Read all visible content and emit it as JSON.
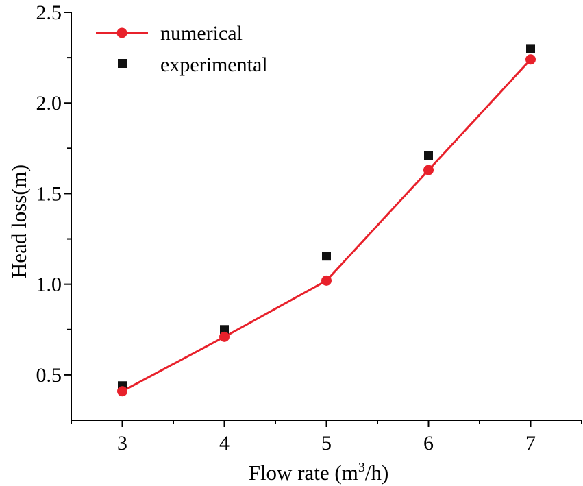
{
  "chart_data": {
    "type": "line",
    "title": "",
    "xlabel": "Flow rate (m",
    "xlabel_superscript": "3",
    "xlabel_suffix": "/h)",
    "ylabel": "Head loss(m)",
    "xlim": [
      2.5,
      7.5
    ],
    "ylim": [
      0.25,
      2.5
    ],
    "x_ticks": [
      3,
      4,
      5,
      6,
      7
    ],
    "y_ticks": [
      0.5,
      1.0,
      1.5,
      2.0,
      2.5
    ],
    "y_tick_labels": [
      "0.5",
      "1.0",
      "1.5",
      "2.0",
      "2.5"
    ],
    "x_tick_labels": [
      "3",
      "4",
      "5",
      "6",
      "7"
    ],
    "grid": false,
    "legend_position": "top-left",
    "series": [
      {
        "name": "numerical",
        "style": "line+circle",
        "color": "#e8212b",
        "x": [
          3,
          4,
          5,
          6,
          7
        ],
        "values": [
          0.41,
          0.71,
          1.02,
          1.63,
          2.24
        ]
      },
      {
        "name": "experimental",
        "style": "square",
        "color": "#111111",
        "x": [
          3,
          4,
          5,
          6,
          7
        ],
        "values": [
          0.44,
          0.75,
          1.155,
          1.71,
          2.3
        ]
      }
    ]
  }
}
